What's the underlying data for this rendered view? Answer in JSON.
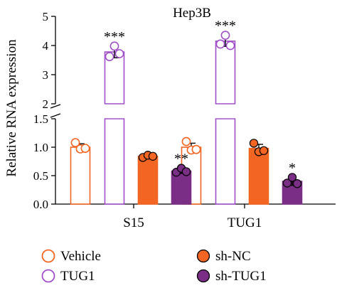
{
  "chart_data": {
    "type": "bar",
    "title": "Hep3B",
    "ylabel": "Relative RNA expression",
    "xlabel": "",
    "categories": [
      "S15",
      "TUG1"
    ],
    "y_axis": {
      "broken": true,
      "lower_range": [
        0,
        1.5
      ],
      "upper_range": [
        2,
        5
      ],
      "lower_ticks": [
        "0.0",
        "0.5",
        "1.0",
        "1.5"
      ],
      "upper_ticks": [
        "2",
        "3",
        "4",
        "5"
      ]
    },
    "colors": {
      "Vehicle": "#F26522",
      "TUG1": "#A050C8",
      "sh-NC": "#F26522",
      "sh-TUG1": "#7A2E86"
    },
    "series": [
      {
        "name": "Vehicle",
        "style": "open-bar",
        "values": [
          1.0,
          1.0
        ],
        "error": [
          0.06,
          0.07
        ],
        "points": [
          [
            1.08,
            0.97,
            0.98
          ],
          [
            1.1,
            0.95,
            0.96
          ]
        ],
        "significance": [
          "",
          ""
        ]
      },
      {
        "name": "TUG1",
        "style": "open-bar",
        "values": [
          3.78,
          4.15
        ],
        "error": [
          0.2,
          0.18
        ],
        "points": [
          [
            3.62,
            3.98,
            3.72
          ],
          [
            4.05,
            4.35,
            4.0
          ]
        ],
        "significance": [
          "***",
          "***"
        ]
      },
      {
        "name": "sh-NC",
        "style": "filled-bar",
        "values": [
          0.84,
          0.98
        ],
        "error": [
          0.03,
          0.07
        ],
        "points": [
          [
            0.82,
            0.86,
            0.84
          ],
          [
            1.07,
            0.92,
            0.94
          ]
        ],
        "significance": [
          "",
          ""
        ]
      },
      {
        "name": "sh-TUG1",
        "style": "filled-bar",
        "values": [
          0.58,
          0.4
        ],
        "error": [
          0.04,
          0.07
        ],
        "points": [
          [
            0.56,
            0.63,
            0.57
          ],
          [
            0.37,
            0.47,
            0.36
          ]
        ],
        "significance": [
          "**",
          "*"
        ]
      }
    ],
    "legend": {
      "placement": "bottom",
      "entries": [
        "Vehicle",
        "TUG1",
        "sh-NC",
        "sh-TUG1"
      ]
    },
    "grid": false
  }
}
